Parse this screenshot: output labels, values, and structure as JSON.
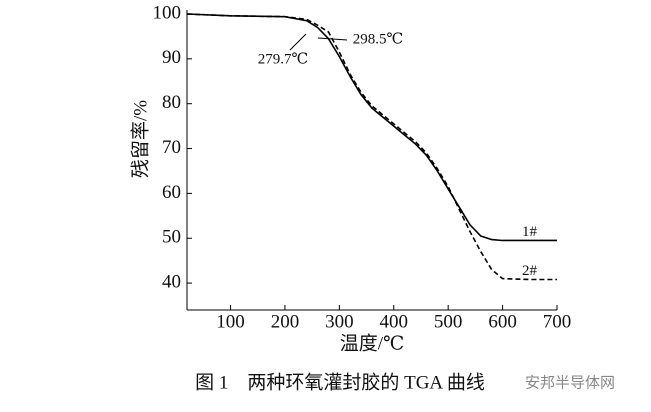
{
  "chart_data": {
    "type": "line",
    "caption": "图 1　两种环氧灌封胶的 TGA 曲线",
    "watermark": "安邦半导体网",
    "x_label": "温度/℃",
    "y_label": "残留率/%",
    "annotations": [
      "279.7℃",
      "298.5℃"
    ],
    "x": [
      20,
      100,
      200,
      240,
      260,
      280,
      300,
      320,
      340,
      360,
      380,
      400,
      420,
      440,
      460,
      480,
      500,
      520,
      540,
      560,
      580,
      600,
      650,
      700
    ],
    "series": [
      {
        "name": "1#",
        "color": "#000000",
        "dash": false,
        "values": [
          100,
          99.6,
          99.4,
          98.5,
          97,
          94.5,
          90.5,
          86,
          82,
          79,
          77,
          75,
          73,
          71,
          68.5,
          65,
          61,
          57,
          53,
          50.5,
          49.7,
          49.5,
          49.5,
          49.5
        ]
      },
      {
        "name": "2#",
        "color": "#000000",
        "dash": true,
        "values": [
          100,
          99.6,
          99.4,
          98.8,
          97.5,
          96,
          91.5,
          86.5,
          82.5,
          79.5,
          77.5,
          75.5,
          73.5,
          71.5,
          69,
          65.5,
          61.5,
          56.5,
          51.5,
          47,
          43,
          41,
          40.8,
          40.8
        ]
      }
    ],
    "xlim": [
      20,
      700
    ],
    "ylim": [
      34,
      100
    ],
    "xticks": [
      100,
      200,
      300,
      400,
      500,
      600,
      700
    ],
    "yticks": [
      40,
      50,
      60,
      70,
      80,
      90,
      100
    ]
  }
}
